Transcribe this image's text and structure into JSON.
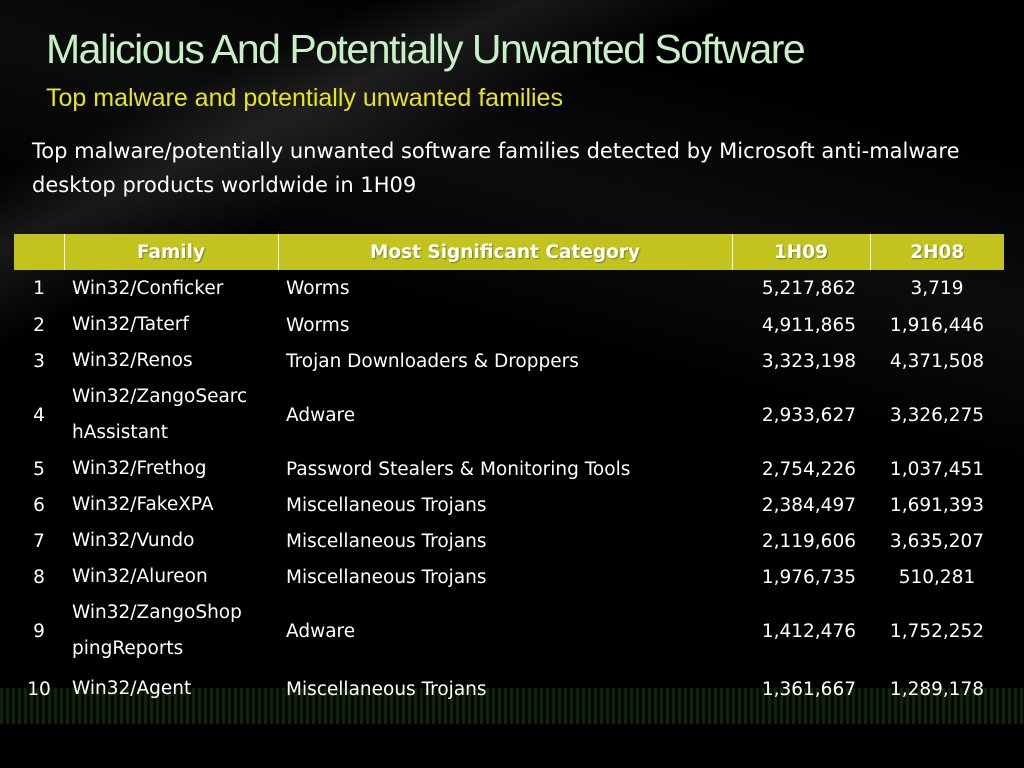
{
  "slide": {
    "title": "Malicious And Potentially Unwanted Software",
    "subtitle": "Top malware and potentially unwanted families",
    "description": "Top malware/potentially unwanted software families detected by Microsoft anti-malware desktop products worldwide in 1H09",
    "accent_color": "#c2c41d",
    "title_color": "#c7f0c4",
    "subtitle_color": "#e6e61c"
  },
  "table": {
    "headers": {
      "rank": "",
      "family": "Family",
      "category": "Most Significant Category",
      "h1_2009": "1H09",
      "h2_2008": "2H08"
    },
    "rows": [
      {
        "rank": "1",
        "family": "Win32/Conficker",
        "category": "Worms",
        "h1_2009": "5,217,862",
        "h2_2008": "3,719"
      },
      {
        "rank": "2",
        "family": "Win32/Taterf",
        "category": "Worms",
        "h1_2009": "4,911,865",
        "h2_2008": "1,916,446"
      },
      {
        "rank": "3",
        "family": "Win32/Renos",
        "category": "Trojan Downloaders & Droppers",
        "h1_2009": "3,323,198",
        "h2_2008": "4,371,508"
      },
      {
        "rank": "4",
        "family": "Win32/ZangoSearchAssistant",
        "family_line1": "Win32/ZangoSearc",
        "family_line2": "hAssistant",
        "category": "Adware",
        "h1_2009": "2,933,627",
        "h2_2008": "3,326,275"
      },
      {
        "rank": "5",
        "family": "Win32/Frethog",
        "category": "Password Stealers & Monitoring Tools",
        "h1_2009": "2,754,226",
        "h2_2008": "1,037,451"
      },
      {
        "rank": "6",
        "family": "Win32/FakeXPA",
        "category": "Miscellaneous Trojans",
        "h1_2009": "2,384,497",
        "h2_2008": "1,691,393"
      },
      {
        "rank": "7",
        "family": "Win32/Vundo",
        "category": "Miscellaneous Trojans",
        "h1_2009": "2,119,606",
        "h2_2008": "3,635,207"
      },
      {
        "rank": "8",
        "family": "Win32/Alureon",
        "category": "Miscellaneous Trojans",
        "h1_2009": "1,976,735",
        "h2_2008": "510,281"
      },
      {
        "rank": "9",
        "family": "Win32/ZangoShoppingReports",
        "family_line1": "Win32/ZangoShop",
        "family_line2": "pingReports",
        "category": "Adware",
        "h1_2009": "1,412,476",
        "h2_2008": "1,752,252"
      },
      {
        "rank": "10",
        "family": "Win32/Agent",
        "category": "Miscellaneous Trojans",
        "h1_2009": "1,361,667",
        "h2_2008": "1,289,178"
      }
    ]
  }
}
